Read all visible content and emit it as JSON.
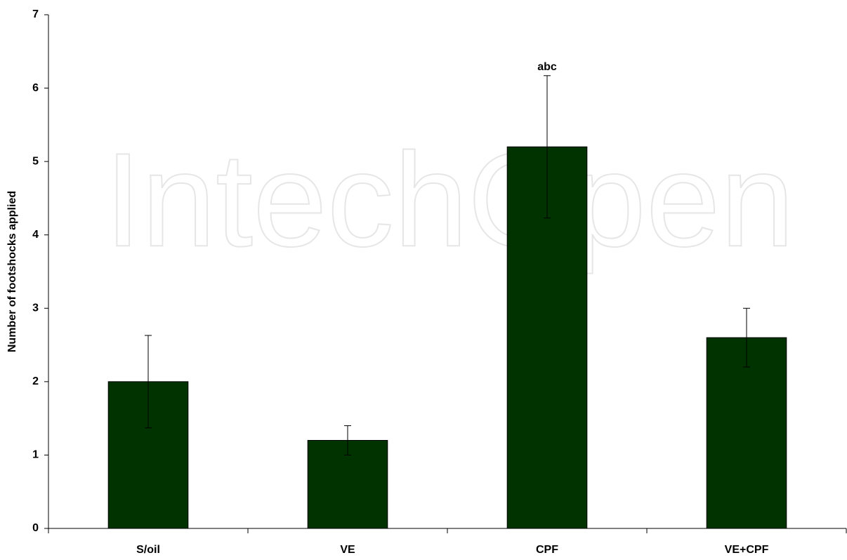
{
  "chart_data": {
    "type": "bar",
    "watermark": "IntechOpen",
    "y_label": "Number of  footshocks applied",
    "categories": [
      "S/oil",
      "VE",
      "CPF",
      "VE+CPF"
    ],
    "values": [
      2,
      1.2,
      5.2,
      2.6
    ],
    "errors": [
      0.63,
      0.2,
      0.97,
      0.4
    ],
    "color": "#003300",
    "ylim": [
      0,
      7
    ],
    "yticks": [
      0,
      1,
      2,
      3,
      4,
      5,
      6,
      7
    ],
    "annotations": [
      {
        "text": "abc",
        "x": "CPF"
      }
    ]
  }
}
